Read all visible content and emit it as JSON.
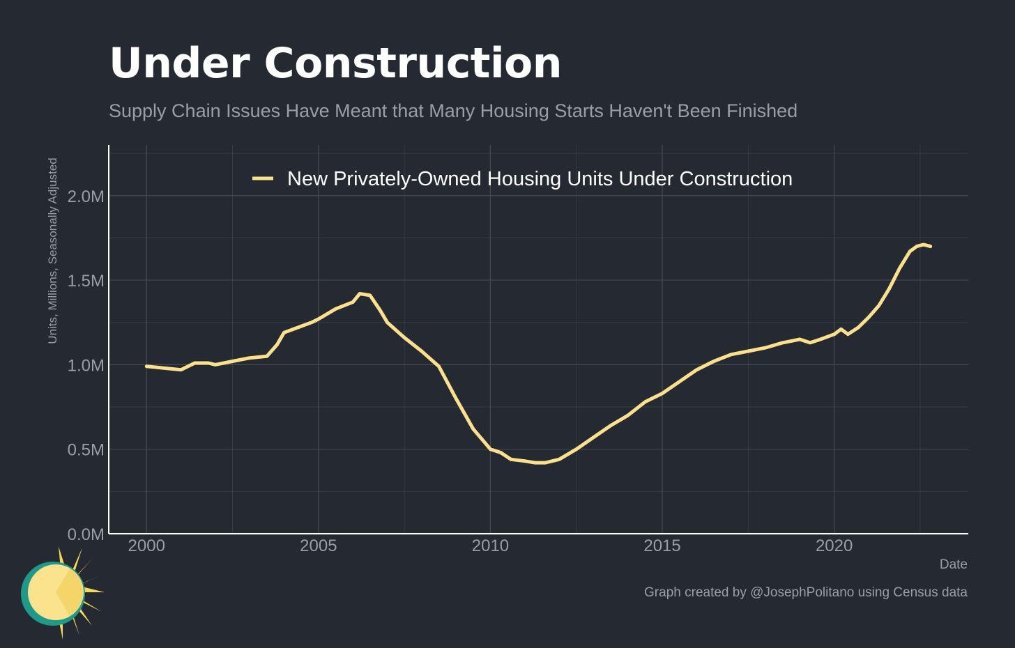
{
  "title": "Under Construction",
  "subtitle": "Supply Chain Issues Have Meant that Many Housing Starts Haven't Been Finished",
  "caption": "Graph created by @JosephPolitano using Census data",
  "colors": {
    "background": "#252931",
    "line": "#fbe18c",
    "grid": "#454a53",
    "text_muted": "#9a9ea6"
  },
  "chart_data": {
    "type": "line",
    "title": "Under Construction",
    "subtitle": "Supply Chain Issues Have Meant that Many Housing Starts Haven't Been Finished",
    "xlabel": "Date",
    "ylabel": "Units, Millions, Seasonally Adjusted",
    "xlim": [
      1998.9,
      2023.9
    ],
    "ylim": [
      0,
      2.3
    ],
    "x_ticks": [
      2000,
      2005,
      2010,
      2015,
      2020
    ],
    "x_tick_labels": [
      "2000",
      "2005",
      "2010",
      "2015",
      "2020"
    ],
    "y_ticks": [
      0,
      0.5,
      1.0,
      1.5,
      2.0
    ],
    "y_tick_labels": [
      "0.0M",
      "0.5M",
      "1.0M",
      "1.5M",
      "2.0M"
    ],
    "grid": true,
    "legend_position": "top",
    "series": [
      {
        "name": "New Privately-Owned Housing Units Under Construction",
        "color": "#fbe18c",
        "x": [
          2000.0,
          2000.5,
          2001.0,
          2001.4,
          2001.8,
          2002.0,
          2002.5,
          2003.0,
          2003.5,
          2003.8,
          2004.0,
          2004.4,
          2004.8,
          2005.0,
          2005.5,
          2006.0,
          2006.2,
          2006.5,
          2006.8,
          2007.0,
          2007.5,
          2008.0,
          2008.5,
          2009.0,
          2009.5,
          2010.0,
          2010.3,
          2010.6,
          2011.0,
          2011.3,
          2011.6,
          2012.0,
          2012.5,
          2013.0,
          2013.5,
          2014.0,
          2014.5,
          2015.0,
          2015.5,
          2016.0,
          2016.5,
          2017.0,
          2017.5,
          2018.0,
          2018.5,
          2019.0,
          2019.3,
          2019.6,
          2020.0,
          2020.2,
          2020.4,
          2020.7,
          2021.0,
          2021.3,
          2021.6,
          2021.9,
          2022.2,
          2022.4,
          2022.6,
          2022.8
        ],
        "values": [
          0.99,
          0.98,
          0.97,
          1.01,
          1.01,
          1.0,
          1.02,
          1.04,
          1.05,
          1.12,
          1.19,
          1.22,
          1.25,
          1.27,
          1.33,
          1.37,
          1.42,
          1.41,
          1.32,
          1.25,
          1.16,
          1.08,
          0.99,
          0.8,
          0.62,
          0.5,
          0.48,
          0.44,
          0.43,
          0.42,
          0.42,
          0.44,
          0.5,
          0.57,
          0.64,
          0.7,
          0.78,
          0.83,
          0.9,
          0.97,
          1.02,
          1.06,
          1.08,
          1.1,
          1.13,
          1.15,
          1.13,
          1.15,
          1.18,
          1.21,
          1.18,
          1.22,
          1.28,
          1.35,
          1.45,
          1.57,
          1.67,
          1.7,
          1.71,
          1.7
        ]
      }
    ]
  }
}
